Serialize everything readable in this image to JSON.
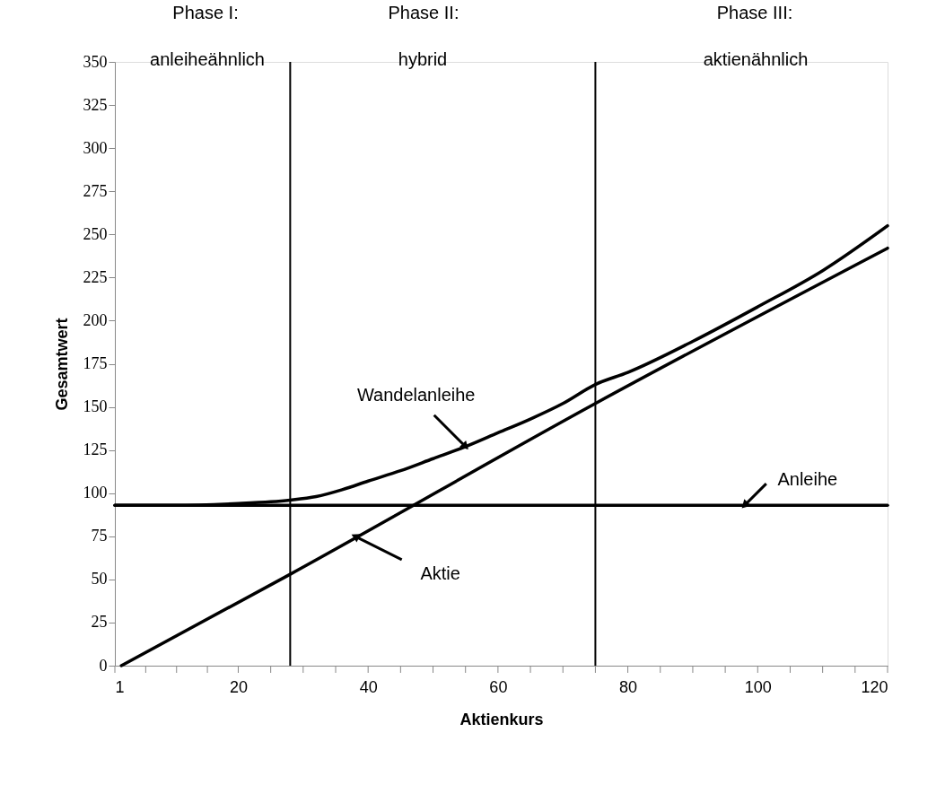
{
  "chart_data": {
    "type": "line",
    "xlabel": "Aktienkurs",
    "ylabel": "Gesamtwert",
    "xlim": [
      1,
      120
    ],
    "ylim": [
      0,
      350
    ],
    "xticks": [
      1,
      {
        "value": 5.75,
        "label": null
      },
      {
        "value": 10.5,
        "label": null
      },
      {
        "value": 15.25,
        "label": null
      },
      20,
      {
        "value": 25,
        "label": null
      },
      {
        "value": 30,
        "label": null
      },
      {
        "value": 35,
        "label": null
      },
      40,
      {
        "value": 45,
        "label": null
      },
      {
        "value": 50,
        "label": null
      },
      {
        "value": 55,
        "label": null
      },
      60,
      {
        "value": 65,
        "label": null
      },
      {
        "value": 70,
        "label": null
      },
      {
        "value": 75,
        "label": null
      },
      80,
      {
        "value": 85,
        "label": null
      },
      {
        "value": 90,
        "label": null
      },
      {
        "value": 95,
        "label": null
      },
      100,
      {
        "value": 105,
        "label": null
      },
      {
        "value": 110,
        "label": null
      },
      {
        "value": 115,
        "label": null
      },
      120
    ],
    "yticks": [
      0,
      25,
      50,
      75,
      100,
      125,
      150,
      175,
      200,
      225,
      250,
      275,
      300,
      325,
      350
    ],
    "series": [
      {
        "color": "#000000",
        "x": [
          2,
          28,
          75,
          120
        ],
        "values": [
          0,
          53,
          152,
          242
        ]
      },
      {
        "color": "#000000",
        "x": [
          1,
          120
        ],
        "values": [
          93,
          93
        ]
      },
      {
        "color": "#000000",
        "x": [
          1,
          10,
          20,
          25,
          28,
          32,
          36,
          40,
          45,
          50,
          55,
          60,
          65,
          70,
          75,
          80,
          90,
          100,
          110,
          120
        ],
        "values": [
          93,
          93,
          94,
          95,
          96,
          98,
          102,
          107,
          113,
          120,
          127,
          135,
          143,
          152,
          163,
          170,
          188,
          208,
          229,
          255
        ]
      }
    ],
    "ref_lines": [
      {
        "axis": "x",
        "value": 28,
        "color": "#000000"
      },
      {
        "axis": "x",
        "value": 75,
        "color": "#000000"
      }
    ],
    "annotations": [
      "Phase I:",
      "anleiheähnlich",
      "Phase II:",
      "hybrid",
      "Phase III:",
      "aktienähnlich",
      {
        "text": "Wandelanleihe",
        "x": 55,
        "y": 127
      },
      {
        "text": "Anleihe",
        "x": 98,
        "y": 93
      },
      {
        "text": "Aktie",
        "x": 38,
        "y": 75
      }
    ],
    "legend": false,
    "grid": false,
    "line_style": "solid",
    "marker": "none"
  }
}
